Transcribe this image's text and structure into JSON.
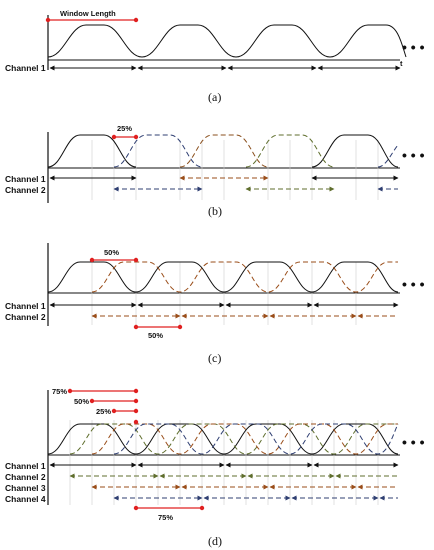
{
  "panel_a": {
    "window_length_label": "Window Length",
    "t_label": "t",
    "channel_labels": [
      "Channel 1"
    ],
    "caption": "(a)",
    "ellipsis": "• • •"
  },
  "panel_b": {
    "overlap_label": "25%",
    "channel_labels": [
      "Channel 1",
      "Channel 2"
    ],
    "caption": "(b)",
    "ellipsis": "• • •"
  },
  "panel_c": {
    "overlap_label_top": "50%",
    "overlap_label_bottom": "50%",
    "channel_labels": [
      "Channel 1",
      "Channel 2"
    ],
    "caption": "(c)",
    "ellipsis": "• • •"
  },
  "panel_d": {
    "overlap_labels_top": [
      "75%",
      "50%",
      "25%"
    ],
    "overlap_label_bottom": "75%",
    "channel_labels": [
      "Channel 1",
      "Channel 2",
      "Channel 3",
      "Channel 4"
    ],
    "caption": "(d)",
    "ellipsis": "• • •"
  },
  "colors": {
    "ch1": "#111111",
    "ch2_b": "#2f3f72",
    "ch3_b": "#8a4f1c",
    "ch4_b": "#5f6e2d",
    "ch2_c": "#9a4e1a",
    "ch2_d": "#5f6e2d",
    "ch3_d": "#9a4e1a",
    "ch4_d": "#2f3f72",
    "red": "#e02020"
  }
}
